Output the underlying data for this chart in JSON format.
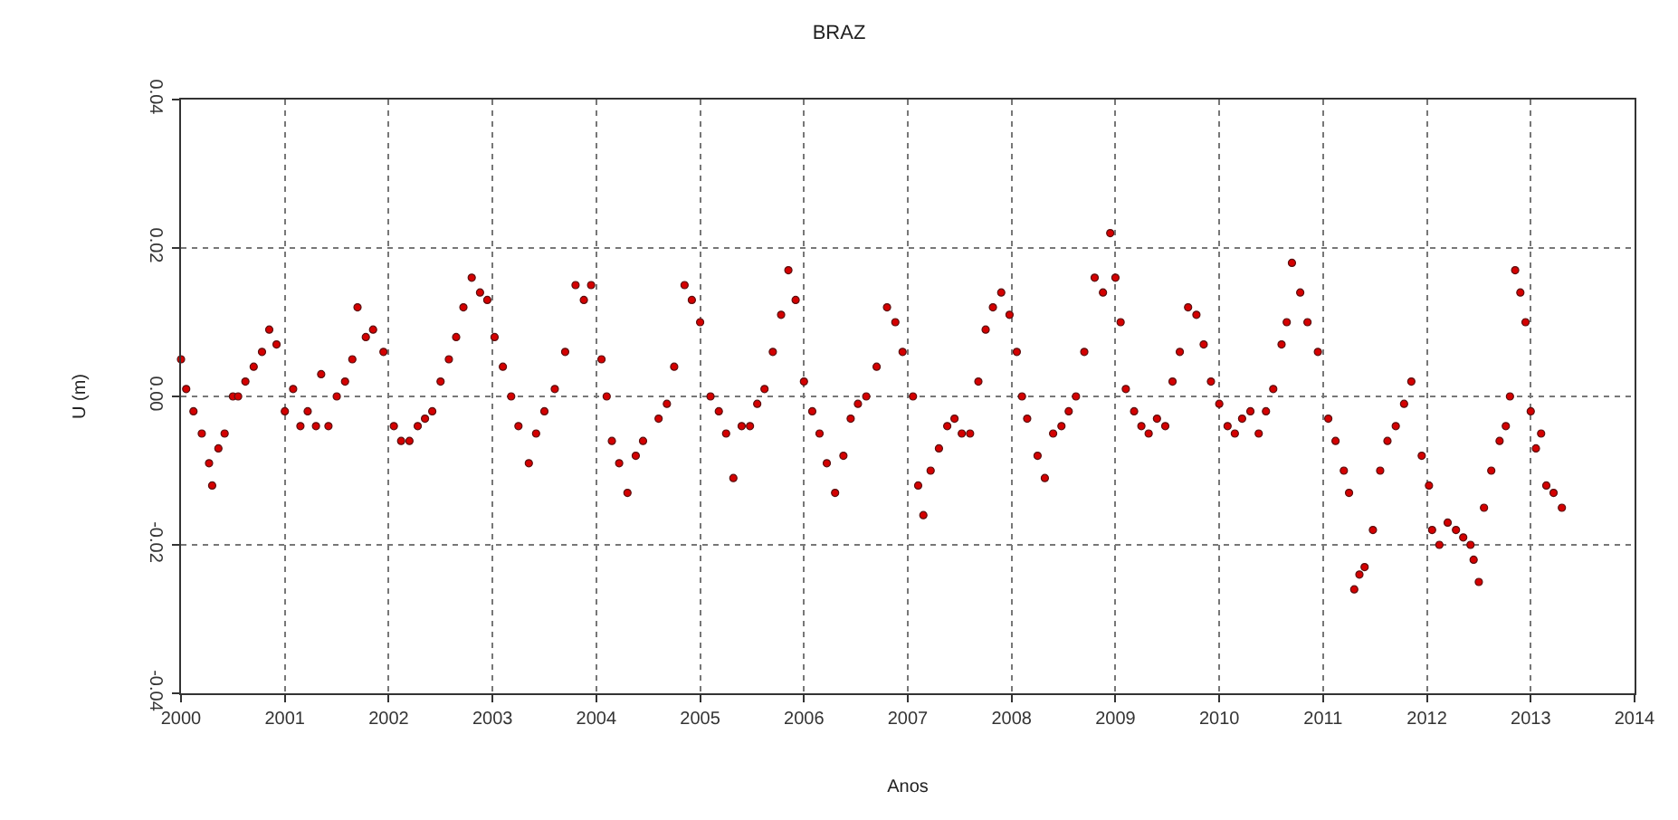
{
  "chart_data": {
    "type": "scatter",
    "title": "BRAZ",
    "xlabel": "Anos",
    "ylabel": "U (m)",
    "xlim": [
      2000,
      2014
    ],
    "xticks": [
      2000,
      2001,
      2002,
      2003,
      2004,
      2005,
      2006,
      2007,
      2008,
      2009,
      2010,
      2011,
      2012,
      2013,
      2014
    ],
    "ylim": [
      -0.04,
      0.04
    ],
    "yticks": [
      {
        "value": -0.04,
        "label": "-0.04"
      },
      {
        "value": -0.02,
        "label": "-0.02"
      },
      {
        "value": 0,
        "label": "0.00"
      },
      {
        "value": 0.02,
        "label": "0.02"
      },
      {
        "value": 0.04,
        "label": "0.04"
      }
    ],
    "grid": true,
    "marker": "circle",
    "series": [
      {
        "color": "#d40000",
        "x": [
          2000.0,
          2000.05,
          2000.12,
          2000.2,
          2000.27,
          2000.3,
          2000.36,
          2000.42,
          2000.5,
          2000.55,
          2000.62,
          2000.7,
          2000.78,
          2000.85,
          2000.92,
          2001.0,
          2001.08,
          2001.15,
          2001.22,
          2001.3,
          2001.35,
          2001.42,
          2001.5,
          2001.58,
          2001.65,
          2001.7,
          2001.78,
          2001.85,
          2001.95,
          2002.05,
          2002.12,
          2002.2,
          2002.28,
          2002.35,
          2002.42,
          2002.5,
          2002.58,
          2002.65,
          2002.72,
          2002.8,
          2002.88,
          2002.95,
          2003.02,
          2003.1,
          2003.18,
          2003.25,
          2003.35,
          2003.42,
          2003.5,
          2003.6,
          2003.7,
          2003.8,
          2003.88,
          2003.95,
          2004.05,
          2004.1,
          2004.15,
          2004.22,
          2004.3,
          2004.38,
          2004.45,
          2004.6,
          2004.68,
          2004.75,
          2004.85,
          2004.92,
          2005.0,
          2005.1,
          2005.18,
          2005.25,
          2005.32,
          2005.4,
          2005.48,
          2005.55,
          2005.62,
          2005.7,
          2005.78,
          2005.85,
          2005.92,
          2006.0,
          2006.08,
          2006.15,
          2006.22,
          2006.3,
          2006.38,
          2006.45,
          2006.52,
          2006.6,
          2006.7,
          2006.8,
          2006.88,
          2006.95,
          2007.05,
          2007.1,
          2007.15,
          2007.22,
          2007.3,
          2007.38,
          2007.45,
          2007.52,
          2007.6,
          2007.68,
          2007.75,
          2007.82,
          2007.9,
          2007.98,
          2008.05,
          2008.1,
          2008.15,
          2008.25,
          2008.32,
          2008.4,
          2008.48,
          2008.55,
          2008.62,
          2008.7,
          2008.8,
          2008.88,
          2008.95,
          2009.0,
          2009.05,
          2009.1,
          2009.18,
          2009.25,
          2009.32,
          2009.4,
          2009.48,
          2009.55,
          2009.62,
          2009.7,
          2009.78,
          2009.85,
          2009.92,
          2010.0,
          2010.08,
          2010.15,
          2010.22,
          2010.3,
          2010.38,
          2010.45,
          2010.52,
          2010.6,
          2010.65,
          2010.7,
          2010.78,
          2010.85,
          2010.95,
          2011.05,
          2011.12,
          2011.2,
          2011.25,
          2011.3,
          2011.35,
          2011.4,
          2011.48,
          2011.55,
          2011.62,
          2011.7,
          2011.78,
          2011.85,
          2011.95,
          2012.02,
          2012.05,
          2012.12,
          2012.2,
          2012.28,
          2012.35,
          2012.42,
          2012.45,
          2012.5,
          2012.55,
          2012.62,
          2012.7,
          2012.76,
          2012.8,
          2012.85,
          2012.9,
          2012.95,
          2013.0,
          2013.05,
          2013.1,
          2013.15,
          2013.22,
          2013.3
        ],
        "values": [
          0.005,
          0.001,
          -0.002,
          -0.005,
          -0.009,
          -0.012,
          -0.007,
          -0.005,
          0.0,
          0.0,
          0.002,
          0.004,
          0.006,
          0.009,
          0.007,
          -0.002,
          0.001,
          -0.004,
          -0.002,
          -0.004,
          0.003,
          -0.004,
          0.0,
          0.002,
          0.005,
          0.012,
          0.008,
          0.009,
          0.006,
          -0.004,
          -0.006,
          -0.006,
          -0.004,
          -0.003,
          -0.002,
          0.002,
          0.005,
          0.008,
          0.012,
          0.016,
          0.014,
          0.013,
          0.008,
          0.004,
          0.0,
          -0.004,
          -0.009,
          -0.005,
          -0.002,
          0.001,
          0.006,
          0.015,
          0.013,
          0.015,
          0.005,
          0.0,
          -0.006,
          -0.009,
          -0.013,
          -0.008,
          -0.006,
          -0.003,
          -0.001,
          0.004,
          0.015,
          0.013,
          0.01,
          0.0,
          -0.002,
          -0.005,
          -0.011,
          -0.004,
          -0.004,
          -0.001,
          0.001,
          0.006,
          0.011,
          0.017,
          0.013,
          0.002,
          -0.002,
          -0.005,
          -0.009,
          -0.013,
          -0.008,
          -0.003,
          -0.001,
          0.0,
          0.004,
          0.012,
          0.01,
          0.006,
          0.0,
          -0.012,
          -0.016,
          -0.01,
          -0.007,
          -0.004,
          -0.003,
          -0.005,
          -0.005,
          0.002,
          0.009,
          0.012,
          0.014,
          0.011,
          0.006,
          0.0,
          -0.003,
          -0.008,
          -0.011,
          -0.005,
          -0.004,
          -0.002,
          0.0,
          0.006,
          0.016,
          0.014,
          0.022,
          0.016,
          0.01,
          0.001,
          -0.002,
          -0.004,
          -0.005,
          -0.003,
          -0.004,
          0.002,
          0.006,
          0.012,
          0.011,
          0.007,
          0.002,
          -0.001,
          -0.004,
          -0.005,
          -0.003,
          -0.002,
          -0.005,
          -0.002,
          0.001,
          0.007,
          0.01,
          0.018,
          0.014,
          0.01,
          0.006,
          -0.003,
          -0.006,
          -0.01,
          -0.013,
          -0.026,
          -0.024,
          -0.023,
          -0.018,
          -0.01,
          -0.006,
          -0.004,
          -0.001,
          0.002,
          -0.008,
          -0.012,
          -0.018,
          -0.02,
          -0.017,
          -0.018,
          -0.019,
          -0.02,
          -0.022,
          -0.025,
          -0.015,
          -0.01,
          -0.006,
          -0.004,
          0.0,
          0.017,
          0.014,
          0.01,
          -0.002,
          -0.007,
          -0.005,
          -0.012,
          -0.013,
          -0.015
        ]
      }
    ]
  }
}
